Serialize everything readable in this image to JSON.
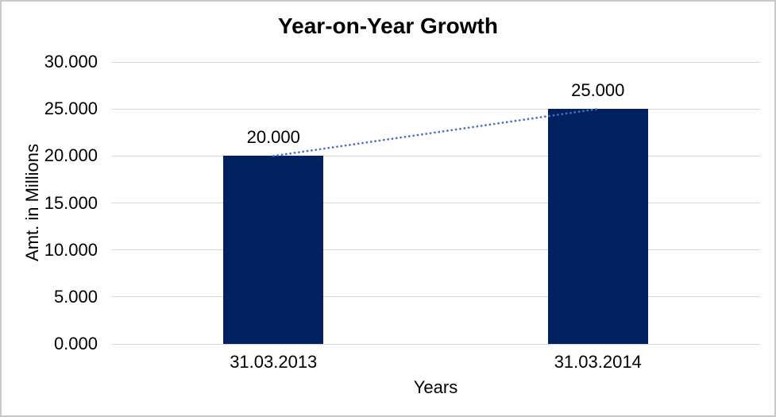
{
  "chart_data": {
    "type": "bar",
    "title": "Year-on-Year Growth",
    "xlabel": "Years",
    "ylabel": "Amt. in Millions",
    "categories": [
      "31.03.2013",
      "31.03.2014"
    ],
    "values": [
      20,
      25
    ],
    "data_labels": [
      "20.000",
      "25.000"
    ],
    "ylim": [
      0,
      30
    ],
    "ytick_interval": 5,
    "ytick_labels": [
      "0.000",
      "5.000",
      "10.000",
      "15.000",
      "20.000",
      "25.000",
      "30.000"
    ],
    "grid": true,
    "legend": "none",
    "bar_color": "#002060",
    "gridline_color": "#d9d9d9",
    "text_color": "#000000",
    "trendline": {
      "type": "linear",
      "style": "dotted",
      "color": "#4472c4"
    }
  }
}
